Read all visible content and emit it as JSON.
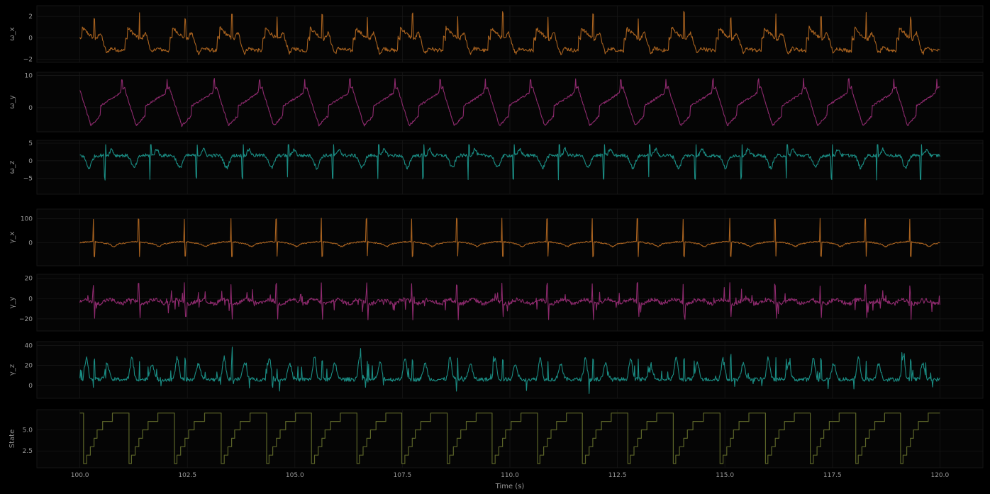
{
  "chart_data": {
    "type": "line",
    "xlabel": "Time (s)",
    "xlim": [
      99.0,
      121.0
    ],
    "xticks": [
      100.0,
      102.5,
      105.0,
      107.5,
      110.0,
      112.5,
      115.0,
      117.5,
      120.0
    ],
    "xtick_labels": [
      "100.0",
      "102.5",
      "105.0",
      "107.5",
      "110.0",
      "112.5",
      "115.0",
      "117.5",
      "120.0"
    ],
    "grid": true,
    "background": "#000000",
    "gait_cycle_start_times": [
      100.0,
      101.05,
      102.1,
      103.2,
      104.25,
      105.3,
      106.35,
      107.4,
      108.45,
      109.5,
      110.55,
      111.6,
      112.65,
      113.7,
      114.8,
      115.85,
      116.9,
      117.95,
      119.0,
      120.0
    ],
    "panels": [
      {
        "ylabel": "ω_x",
        "color": "#a8621f",
        "ylim": [
          -2.3,
          3.0
        ],
        "yticks": [
          -2,
          0,
          2
        ],
        "ytick_labels": [
          "−2",
          "0",
          "2"
        ],
        "signal_min": -1.9,
        "signal_max": 2.7
      },
      {
        "ylabel": "ω_y",
        "color": "#8e2a6e",
        "ylim": [
          -7.5,
          11.0
        ],
        "yticks": [
          0,
          10
        ],
        "ytick_labels": [
          "0",
          "10"
        ],
        "signal_min": -6.5,
        "signal_max": 9.9
      },
      {
        "ylabel": "ω_z",
        "color": "#1a8c83",
        "ylim": [
          -9.5,
          5.8
        ],
        "yticks": [
          -5,
          0,
          5
        ],
        "ytick_labels": [
          "−5",
          "0",
          "5"
        ],
        "signal_min": -8.2,
        "signal_max": 4.6
      },
      {
        "ylabel": "γ_x",
        "color": "#a8621f",
        "ylim": [
          -95,
          140
        ],
        "yticks": [
          0,
          100
        ],
        "ytick_labels": [
          "0",
          "100"
        ],
        "signal_min": -75,
        "signal_max": 120
      },
      {
        "ylabel": "γ_y",
        "color": "#8e2a6e",
        "ylim": [
          -32,
          24
        ],
        "yticks": [
          -20,
          0,
          20
        ],
        "ytick_labels": [
          "−20",
          "0",
          "20"
        ],
        "signal_min": -26,
        "signal_max": 20
      },
      {
        "ylabel": "γ_z",
        "color": "#1a8c83",
        "ylim": [
          -13,
          44
        ],
        "yticks": [
          0,
          20,
          40
        ],
        "ytick_labels": [
          "0",
          "20",
          "40"
        ],
        "signal_min": -9,
        "signal_max": 42
      },
      {
        "ylabel": "State",
        "color": "#5b6428",
        "ylim": [
          0.5,
          7.4
        ],
        "yticks": [
          2.5,
          5.0
        ],
        "ytick_labels": [
          "2.5",
          "5.0"
        ],
        "levels": [
          1,
          2,
          3,
          4,
          5,
          6,
          7
        ]
      }
    ]
  }
}
